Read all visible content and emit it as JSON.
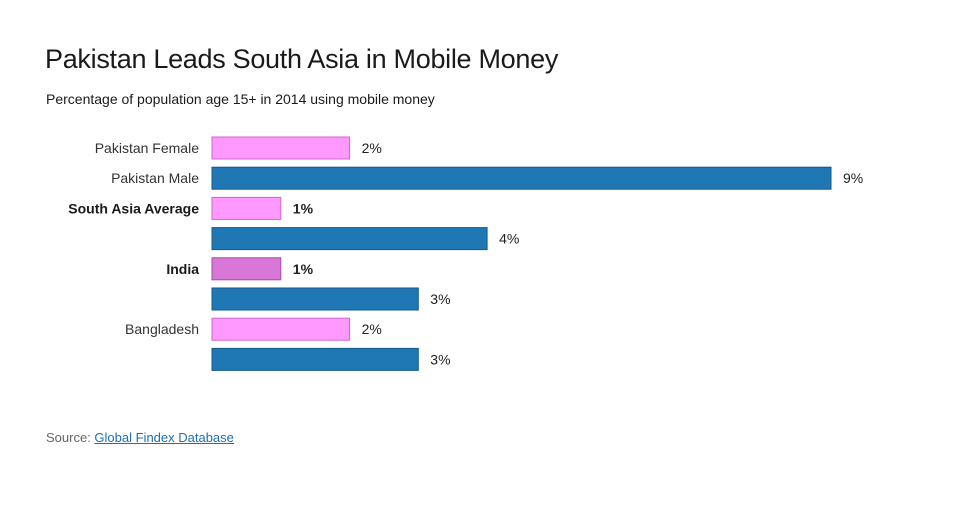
{
  "colors": {
    "female": "#ff99ff",
    "female_border": "#cc66cc",
    "highlight": "#d977d9",
    "highlight_border": "#a34ba3",
    "male": "#1f77b4",
    "male_border": "#135a8c"
  },
  "source": {
    "prefix": "Source: ",
    "link_text": "Global Findex Database"
  },
  "chart_data": {
    "type": "bar",
    "orientation": "horizontal",
    "title": "Pakistan Leads South Asia in Mobile Money",
    "subtitle": "Percentage of population age 15+ in 2014 using mobile money",
    "xlim": [
      0,
      9
    ],
    "grid": false,
    "bars": [
      {
        "label": "Pakistan Female",
        "value": 2,
        "value_label": "2%",
        "color": "female",
        "bold": false
      },
      {
        "label": "Pakistan Male",
        "value": 9,
        "value_label": "9%",
        "color": "male",
        "bold": false
      },
      {
        "label": "South Asia Average",
        "value": 1,
        "value_label": "1%",
        "color": "female",
        "bold": true
      },
      {
        "label": "",
        "value": 4,
        "value_label": "4%",
        "color": "male",
        "bold": false
      },
      {
        "label": "India",
        "value": 1,
        "value_label": "1%",
        "color": "highlight",
        "bold": true
      },
      {
        "label": "",
        "value": 3,
        "value_label": "3%",
        "color": "male",
        "bold": false
      },
      {
        "label": "Bangladesh",
        "value": 2,
        "value_label": "2%",
        "color": "female",
        "bold": false
      },
      {
        "label": "",
        "value": 3,
        "value_label": "3%",
        "color": "male",
        "bold": false
      }
    ]
  }
}
